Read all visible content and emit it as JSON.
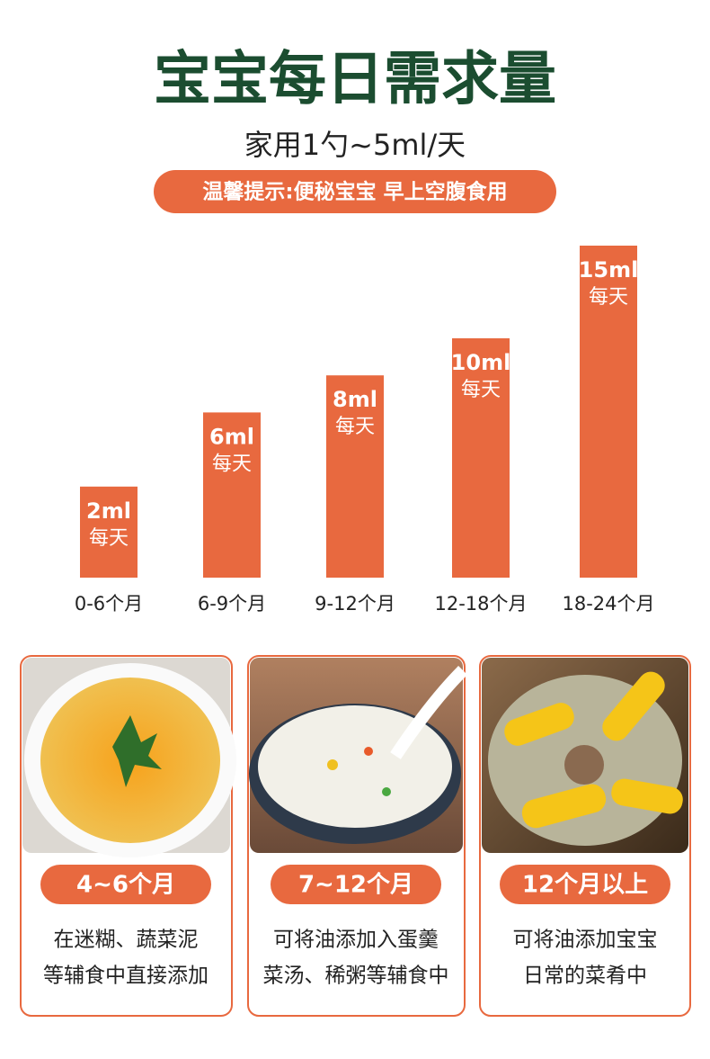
{
  "chart_data": {
    "type": "bar",
    "title": "宝宝每日需求量",
    "subtitle": "家用1勺~5ml/天",
    "annotation": "温馨提示:便秘宝宝 早上空腹食用",
    "categories": [
      "0-6个月",
      "6-9个月",
      "9-12个月",
      "12-18个月",
      "18-24个月"
    ],
    "values": [
      2,
      6,
      8,
      10,
      15
    ],
    "value_labels": [
      "2ml",
      "6ml",
      "8ml",
      "10ml",
      "15ml"
    ],
    "value_sublabel": "每天",
    "color": "#e8693f"
  },
  "cards": [
    {
      "label": "4~6个月",
      "lines": [
        "在迷糊、蔬菜泥",
        "等辅食中直接添加"
      ]
    },
    {
      "label": "7~12个月",
      "lines": [
        "可将油添加入蛋羹",
        "菜汤、稀粥等辅食中"
      ]
    },
    {
      "label": "12个月以上",
      "lines": [
        "可将油添加宝宝",
        "日常的菜肴中"
      ]
    }
  ]
}
